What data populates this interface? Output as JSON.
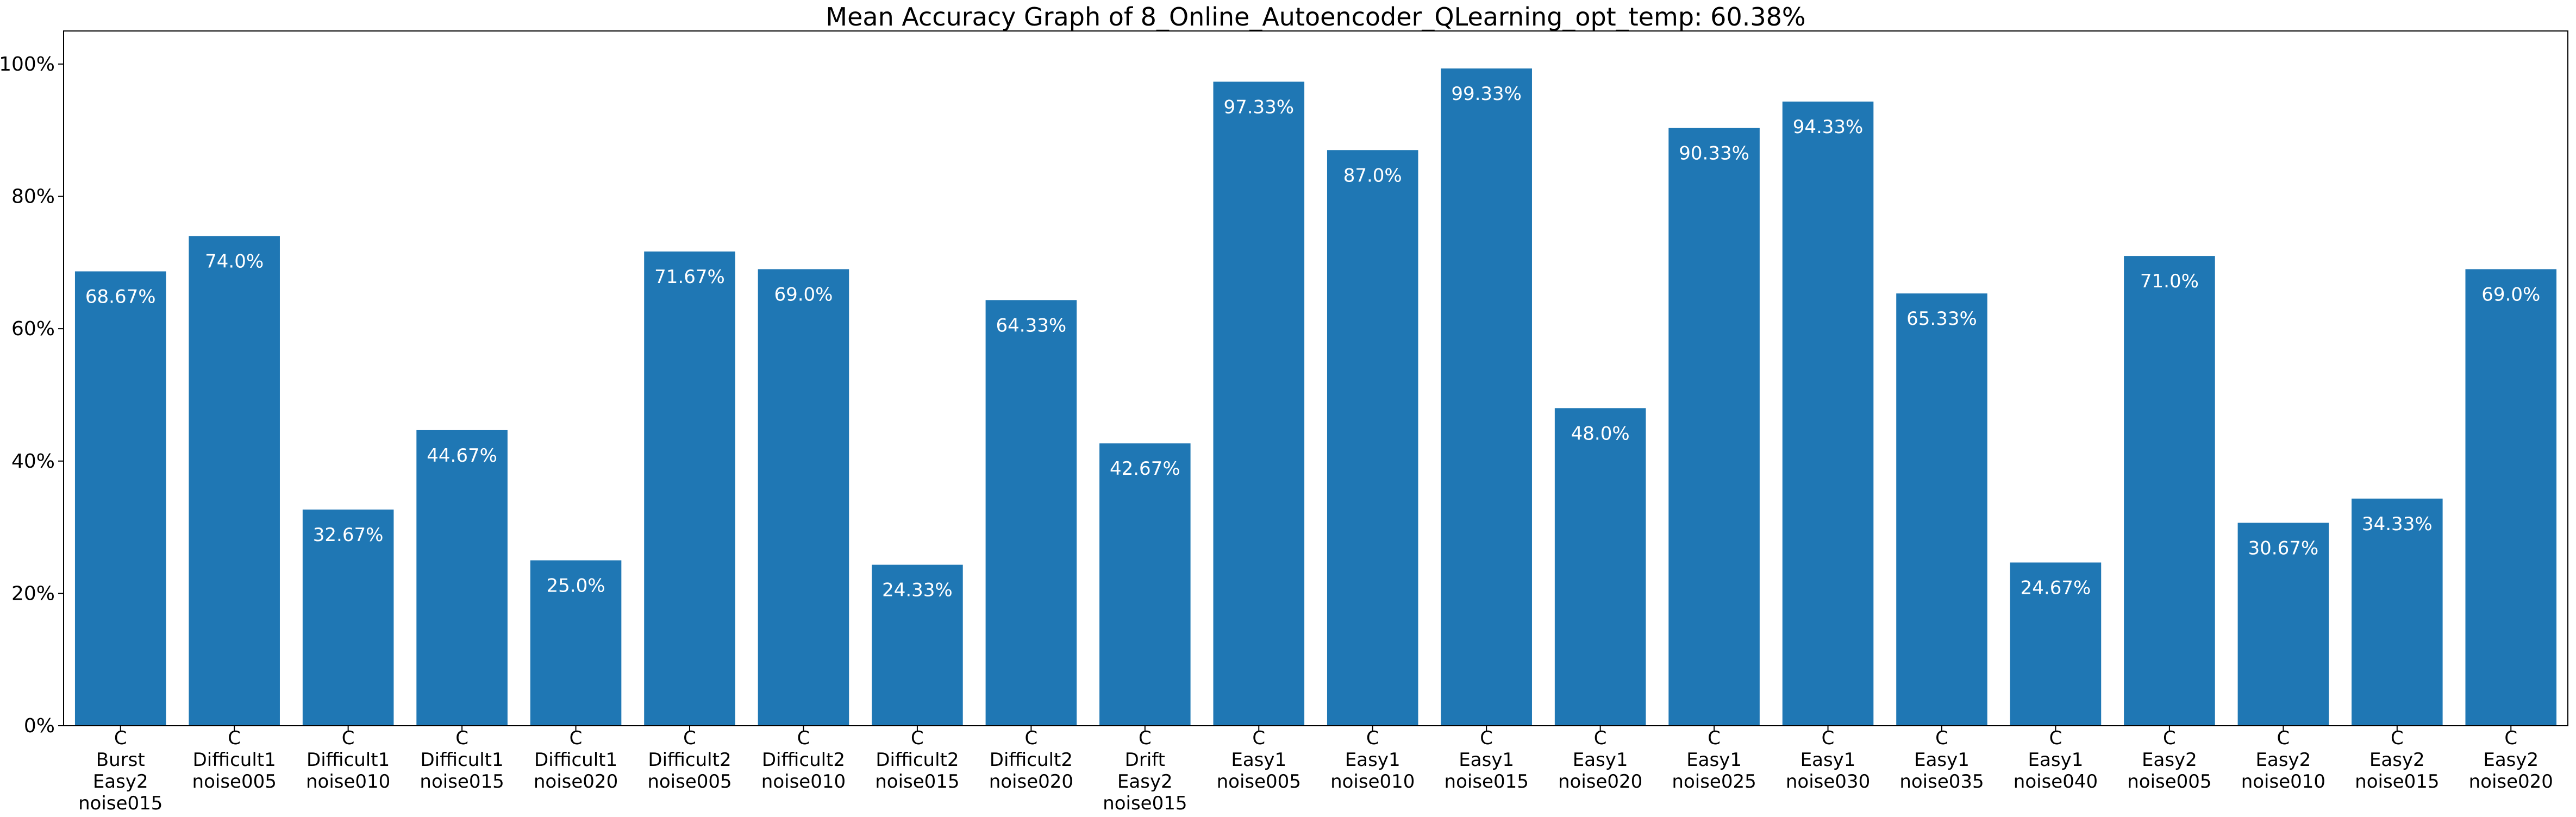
{
  "chart_data": {
    "type": "bar",
    "title": "Mean Accuracy Graph of 8_Online_Autoencoder_QLearning_opt_temp: 60.38%",
    "xlabel": "",
    "ylabel": "",
    "ylim": [
      0,
      105
    ],
    "yticks": [
      0,
      20,
      40,
      60,
      80,
      100
    ],
    "ytick_labels": [
      "0%",
      "20%",
      "40%",
      "60%",
      "80%",
      "100%"
    ],
    "grid": false,
    "bar_color": "#1f77b4",
    "label_color": "#ffffff",
    "categories": [
      [
        "C",
        "Burst",
        "Easy2",
        "noise015"
      ],
      [
        "C",
        "Difficult1",
        "noise005"
      ],
      [
        "C",
        "Difficult1",
        "noise010"
      ],
      [
        "C",
        "Difficult1",
        "noise015"
      ],
      [
        "C",
        "Difficult1",
        "noise020"
      ],
      [
        "C",
        "Difficult2",
        "noise005"
      ],
      [
        "C",
        "Difficult2",
        "noise010"
      ],
      [
        "C",
        "Difficult2",
        "noise015"
      ],
      [
        "C",
        "Difficult2",
        "noise020"
      ],
      [
        "C",
        "Drift",
        "Easy2",
        "noise015"
      ],
      [
        "C",
        "Easy1",
        "noise005"
      ],
      [
        "C",
        "Easy1",
        "noise010"
      ],
      [
        "C",
        "Easy1",
        "noise015"
      ],
      [
        "C",
        "Easy1",
        "noise020"
      ],
      [
        "C",
        "Easy1",
        "noise025"
      ],
      [
        "C",
        "Easy1",
        "noise030"
      ],
      [
        "C",
        "Easy1",
        "noise035"
      ],
      [
        "C",
        "Easy1",
        "noise040"
      ],
      [
        "C",
        "Easy2",
        "noise005"
      ],
      [
        "C",
        "Easy2",
        "noise010"
      ],
      [
        "C",
        "Easy2",
        "noise015"
      ],
      [
        "C",
        "Easy2",
        "noise020"
      ]
    ],
    "values": [
      68.67,
      74.0,
      32.67,
      44.67,
      25.0,
      71.67,
      69.0,
      24.33,
      64.33,
      42.67,
      97.33,
      87.0,
      99.33,
      48.0,
      90.33,
      94.33,
      65.33,
      24.67,
      71.0,
      30.67,
      34.33,
      69.0
    ],
    "value_labels": [
      "68.67%",
      "74.0%",
      "32.67%",
      "44.67%",
      "25.0%",
      "71.67%",
      "69.0%",
      "24.33%",
      "64.33%",
      "42.67%",
      "97.33%",
      "87.0%",
      "99.33%",
      "48.0%",
      "90.33%",
      "94.33%",
      "65.33%",
      "24.67%",
      "71.0%",
      "30.67%",
      "34.33%",
      "69.0%"
    ]
  }
}
